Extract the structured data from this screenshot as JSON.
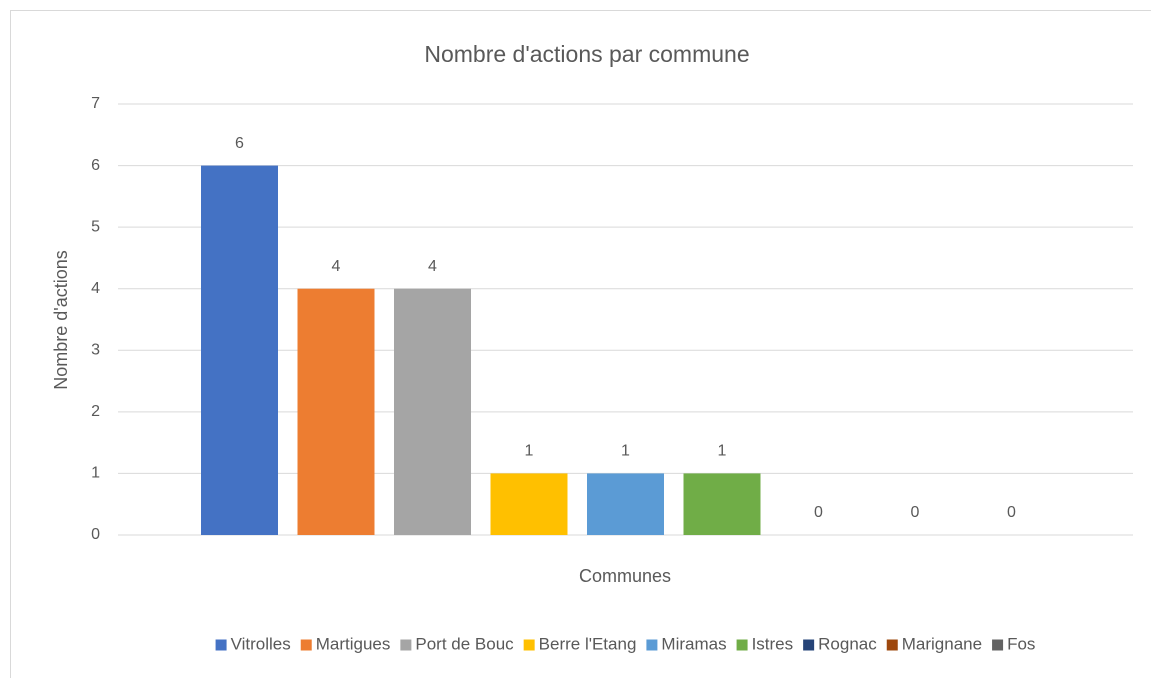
{
  "chart_data": {
    "type": "bar",
    "title": "Nombre d'actions par commune",
    "xlabel": "Communes",
    "ylabel": "Nombre d'actions",
    "series": [
      {
        "name": "Vitrolles",
        "color": "#4472c4",
        "values": [
          6
        ]
      },
      {
        "name": "Martigues",
        "color": "#ed7d31",
        "values": [
          4
        ]
      },
      {
        "name": "Port de Bouc",
        "color": "#a5a5a5",
        "values": [
          4
        ]
      },
      {
        "name": "Berre l'Etang",
        "color": "#ffc000",
        "values": [
          1
        ]
      },
      {
        "name": "Miramas",
        "color": "#5b9bd5",
        "values": [
          1
        ]
      },
      {
        "name": "Istres",
        "color": "#70ad47",
        "values": [
          1
        ]
      },
      {
        "name": "Rognac",
        "color": "#264478",
        "values": [
          0
        ]
      },
      {
        "name": "Marignane",
        "color": "#9e480e",
        "values": [
          0
        ]
      },
      {
        "name": "Fos",
        "color": "#636363",
        "values": [
          0
        ]
      }
    ],
    "ylim": [
      0,
      7
    ],
    "yticks": [
      0,
      1,
      2,
      3,
      4,
      5,
      6,
      7
    ],
    "grid": true,
    "legend": "bottom"
  }
}
